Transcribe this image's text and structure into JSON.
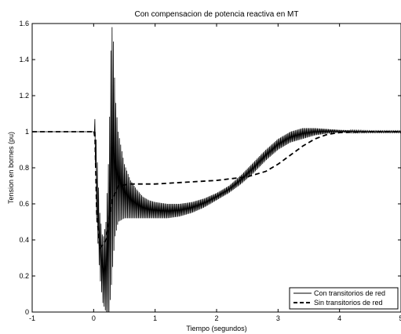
{
  "chart_data": {
    "type": "line",
    "title": "Con compensacion de potencia reactiva en MT",
    "xlabel": "Tiempo (segundos)",
    "ylabel": "Tension en bornes (pu)",
    "xlim": [
      -1,
      5
    ],
    "ylim": [
      0,
      1.6
    ],
    "xticks": [
      -1,
      0,
      1,
      2,
      3,
      4,
      5
    ],
    "yticks": [
      0,
      0.2,
      0.4,
      0.6,
      0.8,
      1,
      1.2,
      1.4,
      1.6
    ],
    "xtick_labels": [
      "-1",
      "0",
      "1",
      "2",
      "3",
      "4",
      "5"
    ],
    "ytick_labels": [
      "0",
      "0.2",
      "0.4",
      "0.6",
      "0.8",
      "1",
      "1.2",
      "1.4",
      "1.6"
    ],
    "grid": false,
    "legend_position": "bottom-right",
    "series": [
      {
        "name": "Con transitorios de red",
        "style": "solid",
        "color": "#000000",
        "envelope": {
          "x": [
            -1,
            0,
            0.02,
            0.05,
            0.1,
            0.15,
            0.2,
            0.25,
            0.28,
            0.3,
            0.32,
            0.35,
            0.4,
            0.5,
            0.6,
            0.7,
            0.8,
            0.9,
            1.0,
            1.2,
            1.4,
            1.6,
            1.8,
            2.0,
            2.2,
            2.4,
            2.6,
            2.8,
            3.0,
            3.2,
            3.4,
            3.6,
            3.8,
            4.0,
            4.5,
            5.0
          ],
          "upper": [
            1.0,
            1.0,
            1.07,
            0.9,
            0.55,
            0.4,
            0.5,
            0.9,
            1.45,
            1.58,
            1.5,
            1.2,
            1.0,
            0.82,
            0.73,
            0.68,
            0.64,
            0.62,
            0.61,
            0.6,
            0.6,
            0.61,
            0.63,
            0.66,
            0.7,
            0.76,
            0.83,
            0.9,
            0.96,
            1.0,
            1.02,
            1.02,
            1.015,
            1.01,
            1.005,
            1.005
          ],
          "lower": [
            1.0,
            1.0,
            0.95,
            0.5,
            0.2,
            0.05,
            0.0,
            0.0,
            0.1,
            0.2,
            0.3,
            0.42,
            0.5,
            0.52,
            0.52,
            0.52,
            0.52,
            0.52,
            0.52,
            0.52,
            0.53,
            0.55,
            0.58,
            0.62,
            0.66,
            0.71,
            0.77,
            0.84,
            0.9,
            0.94,
            0.96,
            0.98,
            0.99,
            0.995,
            0.995,
            0.995
          ]
        }
      },
      {
        "name": "Sin transitorios de red",
        "style": "dashed",
        "color": "#000000",
        "x": [
          -1,
          0,
          0.02,
          0.05,
          0.1,
          0.2,
          0.3,
          0.4,
          0.5,
          0.6,
          0.8,
          1.0,
          1.5,
          2.0,
          2.5,
          2.8,
          3.0,
          3.2,
          3.4,
          3.6,
          3.8,
          4.0,
          4.5,
          5.0
        ],
        "y": [
          1.0,
          1.0,
          1.0,
          0.55,
          0.35,
          0.4,
          0.62,
          0.7,
          0.705,
          0.71,
          0.71,
          0.71,
          0.72,
          0.73,
          0.75,
          0.78,
          0.82,
          0.87,
          0.92,
          0.96,
          0.985,
          0.995,
          1.0,
          1.0
        ]
      }
    ]
  }
}
